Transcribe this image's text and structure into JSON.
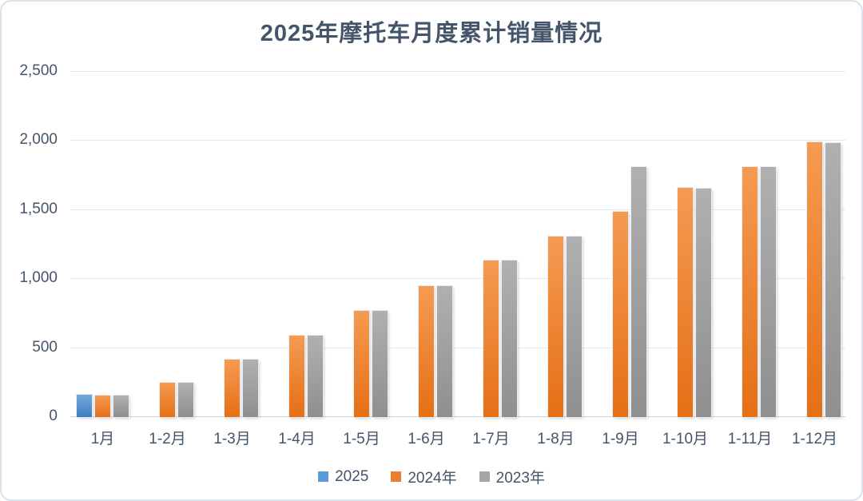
{
  "title": "2025年摩托车月度累计销量情况",
  "colors": {
    "title_text": "#44546A",
    "axis_text": "#44546A",
    "gridline": "#E4E9F2",
    "axis_line": "#C9D2DE",
    "frame_border": "#DCE2EC",
    "background": "#FFFFFF",
    "series_blue": "#5B9BD5",
    "series_orange": "#ED7D31",
    "series_gray": "#A6A6A6"
  },
  "y_axis": {
    "tick_values": [
      0,
      500,
      1000,
      1500,
      2000,
      2500
    ],
    "tick_labels": [
      "0",
      "500",
      "1,000",
      "1,500",
      "2,000",
      "2,500"
    ]
  },
  "chart_data": {
    "type": "bar",
    "title": "2025年摩托车月度累计销量情况",
    "categories": [
      "1月",
      "1-2月",
      "1-3月",
      "1-4月",
      "1-5月",
      "1-6月",
      "1-7月",
      "1-8月",
      "1-9月",
      "1-10月",
      "1-11月",
      "1-12月"
    ],
    "series": [
      {
        "name": "2025",
        "color": "#5B9BD5",
        "gradient": [
          "#74A9DC",
          "#3E7EC1"
        ],
        "values": [
          162,
          null,
          null,
          null,
          null,
          null,
          null,
          null,
          null,
          null,
          null,
          null
        ]
      },
      {
        "name": "2024年",
        "color": "#ED7D31",
        "gradient": [
          "#F59B52",
          "#E56F15"
        ],
        "values": [
          154,
          250,
          418,
          592,
          770,
          948,
          1133,
          1310,
          1490,
          1660,
          1814,
          1990
        ]
      },
      {
        "name": "2023年",
        "color": "#A6A6A6",
        "gradient": [
          "#B0B0B0",
          "#8F8F8F"
        ],
        "values": [
          154,
          250,
          418,
          592,
          770,
          948,
          1133,
          1310,
          1813,
          1655,
          1810,
          1987
        ]
      }
    ],
    "xlabel": "",
    "ylabel": "",
    "ylim": [
      0,
      2500
    ],
    "ytick_interval": 500,
    "grid": true,
    "legend_position": "bottom"
  }
}
